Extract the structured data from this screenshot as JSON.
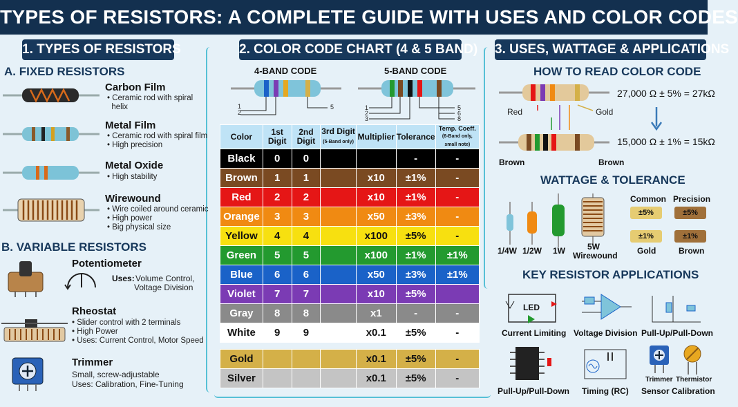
{
  "title": "TYPES OF RESISTORS: A COMPLETE GUIDE WITH USES AND COLOR CODES",
  "sections": {
    "s1": "1. TYPES OF RESISTORS",
    "s2": "2. COLOR CODE CHART (4 & 5 BAND)",
    "s3": "3. USES, WATTAGE & APPLICATIONS"
  },
  "fixed": {
    "heading": "A. FIXED RESISTORS",
    "items": [
      {
        "name": "Carbon Film",
        "desc1": "• Ceramic rod with spiral",
        "desc2": "  helix",
        "desc3": ""
      },
      {
        "name": "Metal Film",
        "desc1": "• Ceramic rod with spiral film",
        "desc2": "• High precision",
        "desc3": ""
      },
      {
        "name": "Metal Oxide",
        "desc1": "• High stability",
        "desc2": "",
        "desc3": ""
      },
      {
        "name": "Wirewound",
        "desc1": "• Wire coiled around ceramic",
        "desc2": "• High power",
        "desc3": "• Big physical size"
      }
    ]
  },
  "variable": {
    "heading": "B. VARIABLE RESISTORS",
    "pot": {
      "name": "Potentiometer",
      "uses_label": "Uses:",
      "uses1": "Volume Control,",
      "uses2": "Voltage Division"
    },
    "rheo": {
      "name": "Rheostat",
      "d1": "• Slider control with 2 terminals",
      "d2": "• High Power",
      "d3": "• Uses: Current Control, Motor Speed"
    },
    "trim": {
      "name": "Trimmer",
      "d1": "Small, screw-adjustable",
      "d2": "Uses: Calibration, Fine-Tuning"
    }
  },
  "codes": {
    "four_band": "4-BAND CODE",
    "five_band": "5-BAND CODE",
    "four_nums": [
      "1",
      "2",
      "5"
    ],
    "five_nums_left": [
      "1",
      "2",
      "3"
    ],
    "five_nums_right": [
      "5",
      "6",
      "8"
    ]
  },
  "table": {
    "headers": [
      "Color",
      "1st Digit",
      "2nd Digit",
      "3rd Digit",
      "(5-Band only)",
      "Multiplier",
      "Tolerance",
      "Temp. Coeff.",
      "(6-Band only, small note)"
    ],
    "rows": [
      {
        "name": "Black",
        "d1": "0",
        "d2": "0",
        "d3": "",
        "mult": "",
        "tol": "-",
        "temp": "-",
        "bg": "#000000",
        "fg": "#ffffff"
      },
      {
        "name": "Brown",
        "d1": "1",
        "d2": "1",
        "d3": "",
        "mult": "x10",
        "tol": "±1%",
        "temp": "-",
        "bg": "#7a4a22",
        "fg": "#ffffff"
      },
      {
        "name": "Red",
        "d1": "2",
        "d2": "2",
        "d3": "",
        "mult": "x10",
        "tol": "±1%",
        "temp": "-",
        "bg": "#e51616",
        "fg": "#ffffff"
      },
      {
        "name": "Orange",
        "d1": "3",
        "d2": "3",
        "d3": "",
        "mult": "x50",
        "tol": "±3%",
        "temp": "-",
        "bg": "#f08a12",
        "fg": "#ffffff"
      },
      {
        "name": "Yellow",
        "d1": "4",
        "d2": "4",
        "d3": "",
        "mult": "x100",
        "tol": "±5%",
        "temp": "-",
        "bg": "#f7e010",
        "fg": "#111111"
      },
      {
        "name": "Green",
        "d1": "5",
        "d2": "5",
        "d3": "",
        "mult": "x100",
        "tol": "±1%",
        "temp": "±1%",
        "bg": "#239a2f",
        "fg": "#ffffff"
      },
      {
        "name": "Blue",
        "d1": "6",
        "d2": "6",
        "d3": "",
        "mult": "x50",
        "tol": "±3%",
        "temp": "±1%",
        "bg": "#1a62c8",
        "fg": "#ffffff"
      },
      {
        "name": "Violet",
        "d1": "7",
        "d2": "7",
        "d3": "",
        "mult": "x10",
        "tol": "±5%",
        "temp": "",
        "bg": "#7b3bb4",
        "fg": "#ffffff"
      },
      {
        "name": "Gray",
        "d1": "8",
        "d2": "8",
        "d3": "",
        "mult": "x1",
        "tol": "-",
        "temp": "-",
        "bg": "#8a8a8a",
        "fg": "#ffffff"
      },
      {
        "name": "White",
        "d1": "9",
        "d2": "9",
        "d3": "",
        "mult": "x0.1",
        "tol": "±5%",
        "temp": "-",
        "bg": "#ffffff",
        "fg": "#111111"
      }
    ],
    "special": [
      {
        "name": "Gold",
        "mult": "x0.1",
        "tol": "±5%",
        "temp": "-",
        "bg": "#d4b048",
        "fg": "#111111"
      },
      {
        "name": "Silver",
        "mult": "x0.1",
        "tol": "±5%",
        "temp": "-",
        "bg": "#c4c4c4",
        "fg": "#111111"
      }
    ]
  },
  "read": {
    "heading": "HOW TO READ COLOR CODE",
    "r1": "27,000 Ω ± 5% = 27kΩ",
    "r2": "15,000 Ω ± 1% = 15kΩ",
    "red": "Red",
    "gold": "Gold",
    "brown1": "Brown",
    "brown2": "Brown"
  },
  "wattage": {
    "heading": "WATTAGE & TOLERANCE",
    "labels": [
      "1/4W",
      "1/2W",
      "1W",
      "5W",
      "Wirewound"
    ],
    "common": "Common",
    "precision": "Precision",
    "pill_common": "±5%",
    "pill_prec": "±5%",
    "pill_gold": "±1%",
    "pill_brown": "±1%",
    "gold": "Gold",
    "brown": "Brown"
  },
  "apps": {
    "heading": "KEY RESISTOR APPLICATIONS",
    "led": "LED",
    "row1": [
      "Current Limiting",
      "Voltage Division",
      "Pull-Up/Pull-Down"
    ],
    "row2": [
      "Pull-Up/Pull-Down",
      "Timing (RC)",
      "Sensor Calibration"
    ],
    "trimmer": "Trimmer",
    "thermistor": "Thermistor"
  },
  "colors": {
    "navy": "#17385b",
    "accent": "#56c0d6"
  }
}
